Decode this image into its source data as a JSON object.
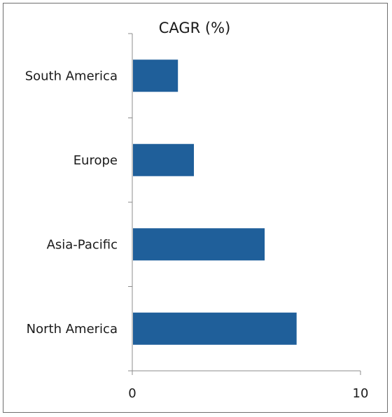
{
  "chart_data": {
    "type": "bar",
    "orientation": "horizontal",
    "title": "CAGR (%)",
    "categories": [
      "South America",
      "Europe",
      "Asia-Pacific",
      "North America"
    ],
    "values": [
      2.0,
      2.7,
      5.8,
      7.2
    ],
    "xlim": [
      0,
      10
    ],
    "x_ticks": [
      "0",
      "10"
    ],
    "xlabel": "",
    "ylabel": "",
    "grid": false,
    "legend": "none",
    "bar_color": "#1f5f9a"
  }
}
